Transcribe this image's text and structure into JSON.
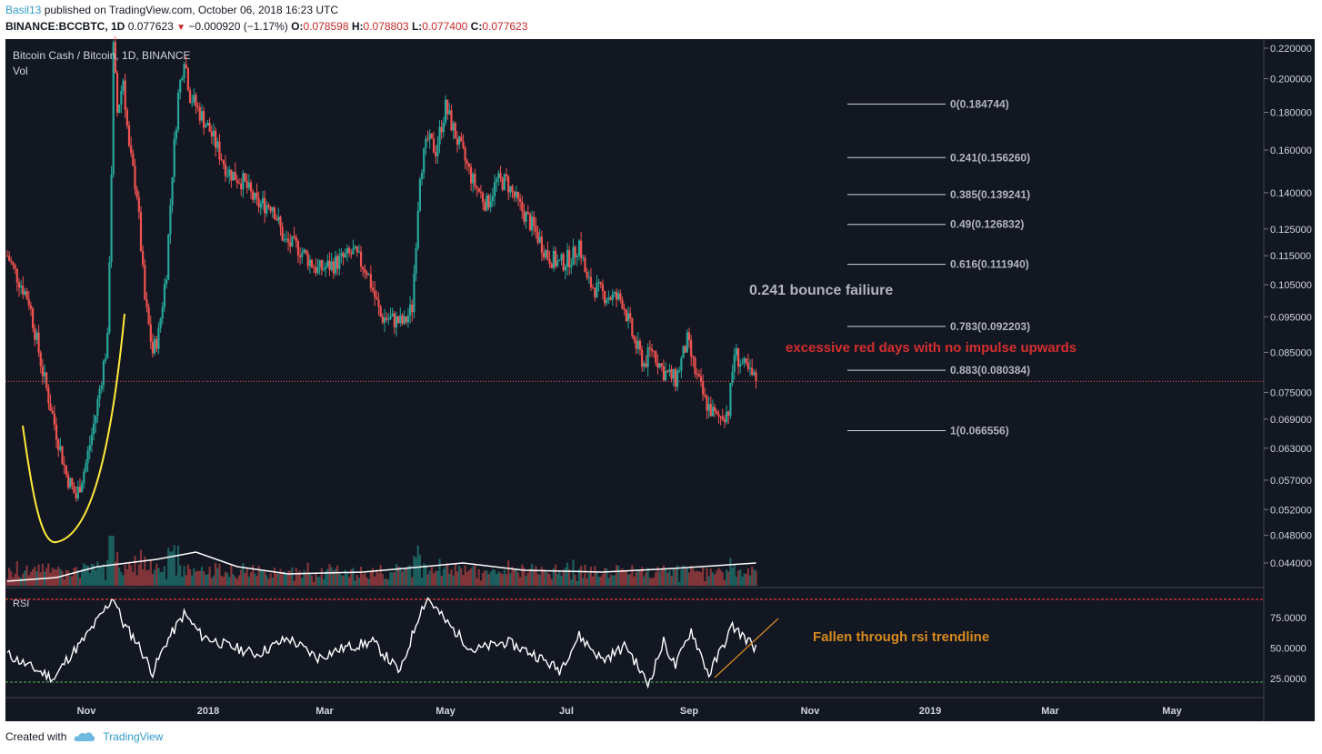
{
  "header": {
    "user": "Basil13",
    "published_text": "published on TradingView.com, October 06, 2018 16:23 UTC",
    "symbol": "BINANCE:BCCBTC, 1D",
    "last": "0.077623",
    "change": "−0.000920 (−1.17%)",
    "o_label": "O:",
    "o": "0.078598",
    "h_label": "H:",
    "h": "0.078803",
    "l_label": "L:",
    "l": "0.077400",
    "c_label": "C:",
    "c": "0.077623"
  },
  "pane": {
    "title": "Bitcoin Cash / Bitcoin, 1D, BINANCE",
    "vol_label": "Vol",
    "rsi_label": "RSI"
  },
  "annotations": {
    "bounce": "0.241 bounce failiure",
    "red_days": "excessive red days with no impulse upwards",
    "rsi_note": "Fallen through rsi trendline"
  },
  "footer": {
    "created_with": "Created with",
    "brand": "TradingView"
  },
  "colors": {
    "background": "#131722",
    "up": "#26a69a",
    "down": "#ef5350",
    "annotation_red": "#d32f2f",
    "annotation_orange": "#d68a1f",
    "yellow_curve": "#ffeb3b",
    "rsi_line": "#ffffff"
  },
  "chart_data": {
    "type": "candlestick",
    "title": "Bitcoin Cash / Bitcoin, 1D, BINANCE",
    "y_scale": "log",
    "ylim": [
      0.04,
      0.225
    ],
    "price_ticks": [
      "0.220000",
      "0.200000",
      "0.180000",
      "0.160000",
      "0.140000",
      "0.125000",
      "0.115000",
      "0.105000",
      "0.095000",
      "0.085000",
      "0.075000",
      "0.069000",
      "0.063000",
      "0.057000",
      "0.052000",
      "0.048000",
      "0.044000"
    ],
    "x_ticks": [
      "Nov",
      "2018",
      "Mar",
      "May",
      "Jul",
      "Sep",
      "Nov",
      "2019",
      "Mar",
      "May"
    ],
    "last_price": 0.077623,
    "fib_levels": [
      {
        "label": "0(0.184744)",
        "value": 0.184744
      },
      {
        "label": "0.241(0.156260)",
        "value": 0.15626
      },
      {
        "label": "0.385(0.139241)",
        "value": 0.139241
      },
      {
        "label": "0.49(0.126832)",
        "value": 0.126832
      },
      {
        "label": "0.616(0.111940)",
        "value": 0.11194
      },
      {
        "label": "0.783(0.092203)",
        "value": 0.092203
      },
      {
        "label": "0.883(0.080384)",
        "value": 0.080384
      },
      {
        "label": "1(0.066556)",
        "value": 0.066556
      }
    ],
    "close_path": [
      [
        "2017-09-20",
        0.115
      ],
      [
        "2017-10-01",
        0.1
      ],
      [
        "2017-10-08",
        0.08
      ],
      [
        "2017-10-14",
        0.068
      ],
      [
        "2017-10-20",
        0.058
      ],
      [
        "2017-10-25",
        0.054
      ],
      [
        "2017-10-30",
        0.06
      ],
      [
        "2017-11-04",
        0.07
      ],
      [
        "2017-11-08",
        0.082
      ],
      [
        "2017-11-10",
        0.088
      ],
      [
        "2017-11-12",
        0.15
      ],
      [
        "2017-11-13",
        0.22
      ],
      [
        "2017-11-15",
        0.18
      ],
      [
        "2017-11-18",
        0.2
      ],
      [
        "2017-11-21",
        0.16
      ],
      [
        "2017-11-25",
        0.14
      ],
      [
        "2017-11-29",
        0.1
      ],
      [
        "2017-12-03",
        0.085
      ],
      [
        "2017-12-06",
        0.09
      ],
      [
        "2017-12-10",
        0.11
      ],
      [
        "2017-12-13",
        0.15
      ],
      [
        "2017-12-16",
        0.19
      ],
      [
        "2017-12-19",
        0.215
      ],
      [
        "2017-12-22",
        0.19
      ],
      [
        "2018-01-01",
        0.17
      ],
      [
        "2018-01-10",
        0.15
      ],
      [
        "2018-01-18",
        0.145
      ],
      [
        "2018-01-25",
        0.135
      ],
      [
        "2018-02-02",
        0.135
      ],
      [
        "2018-02-08",
        0.12
      ],
      [
        "2018-02-15",
        0.118
      ],
      [
        "2018-02-25",
        0.11
      ],
      [
        "2018-03-05",
        0.112
      ],
      [
        "2018-03-15",
        0.116
      ],
      [
        "2018-03-22",
        0.11
      ],
      [
        "2018-03-29",
        0.095
      ],
      [
        "2018-04-05",
        0.094
      ],
      [
        "2018-04-10",
        0.093
      ],
      [
        "2018-04-14",
        0.098
      ],
      [
        "2018-04-18",
        0.15
      ],
      [
        "2018-04-22",
        0.165
      ],
      [
        "2018-04-26",
        0.16
      ],
      [
        "2018-05-01",
        0.183
      ],
      [
        "2018-05-07",
        0.165
      ],
      [
        "2018-05-15",
        0.145
      ],
      [
        "2018-05-22",
        0.135
      ],
      [
        "2018-05-27",
        0.145
      ],
      [
        "2018-06-01",
        0.145
      ],
      [
        "2018-06-07",
        0.135
      ],
      [
        "2018-06-15",
        0.125
      ],
      [
        "2018-06-22",
        0.115
      ],
      [
        "2018-06-28",
        0.112
      ],
      [
        "2018-07-05",
        0.115
      ],
      [
        "2018-07-08",
        0.12
      ],
      [
        "2018-07-12",
        0.106
      ],
      [
        "2018-07-20",
        0.102
      ],
      [
        "2018-07-30",
        0.1
      ],
      [
        "2018-08-05",
        0.088
      ],
      [
        "2018-08-10",
        0.082
      ],
      [
        "2018-08-14",
        0.086
      ],
      [
        "2018-08-20",
        0.08
      ],
      [
        "2018-08-26",
        0.078
      ],
      [
        "2018-09-01",
        0.088
      ],
      [
        "2018-09-05",
        0.08
      ],
      [
        "2018-09-10",
        0.073
      ],
      [
        "2018-09-16",
        0.069
      ],
      [
        "2018-09-22",
        0.071
      ],
      [
        "2018-09-25",
        0.085
      ],
      [
        "2018-09-30",
        0.081
      ],
      [
        "2018-10-06",
        0.077623
      ]
    ],
    "rsi": {
      "ticks": [
        "75.0000",
        "50.0000",
        "25.0000"
      ],
      "upper": 90,
      "lower": 22,
      "path": [
        [
          "2017-09-20",
          45
        ],
        [
          "2017-10-01",
          35
        ],
        [
          "2017-10-14",
          25
        ],
        [
          "2017-10-20",
          40
        ],
        [
          "2017-10-28",
          55
        ],
        [
          "2017-11-06",
          75
        ],
        [
          "2017-11-13",
          92
        ],
        [
          "2017-11-18",
          70
        ],
        [
          "2017-11-25",
          55
        ],
        [
          "2017-12-03",
          30
        ],
        [
          "2017-12-10",
          55
        ],
        [
          "2017-12-19",
          78
        ],
        [
          "2017-12-28",
          60
        ],
        [
          "2018-01-10",
          52
        ],
        [
          "2018-01-25",
          45
        ],
        [
          "2018-02-10",
          58
        ],
        [
          "2018-02-25",
          42
        ],
        [
          "2018-03-10",
          50
        ],
        [
          "2018-03-25",
          55
        ],
        [
          "2018-04-08",
          30
        ],
        [
          "2018-04-18",
          80
        ],
        [
          "2018-04-22",
          91
        ],
        [
          "2018-05-01",
          72
        ],
        [
          "2018-05-15",
          48
        ],
        [
          "2018-06-01",
          55
        ],
        [
          "2018-06-15",
          45
        ],
        [
          "2018-06-28",
          32
        ],
        [
          "2018-07-08",
          60
        ],
        [
          "2018-07-20",
          40
        ],
        [
          "2018-08-01",
          52
        ],
        [
          "2018-08-12",
          20
        ],
        [
          "2018-08-20",
          55
        ],
        [
          "2018-08-26",
          35
        ],
        [
          "2018-09-03",
          65
        ],
        [
          "2018-09-12",
          28
        ],
        [
          "2018-09-24",
          68
        ],
        [
          "2018-10-06",
          50
        ]
      ]
    },
    "volume_ma": [
      [
        "2017-09-20",
        2
      ],
      [
        "2017-10-15",
        4
      ],
      [
        "2017-11-05",
        10
      ],
      [
        "2017-11-20",
        12
      ],
      [
        "2017-12-05",
        14
      ],
      [
        "2017-12-25",
        18
      ],
      [
        "2018-01-15",
        10
      ],
      [
        "2018-02-10",
        6
      ],
      [
        "2018-03-20",
        7
      ],
      [
        "2018-04-20",
        10
      ],
      [
        "2018-05-10",
        12
      ],
      [
        "2018-06-10",
        8
      ],
      [
        "2018-07-20",
        7
      ],
      [
        "2018-08-25",
        9
      ],
      [
        "2018-10-06",
        12
      ]
    ]
  }
}
